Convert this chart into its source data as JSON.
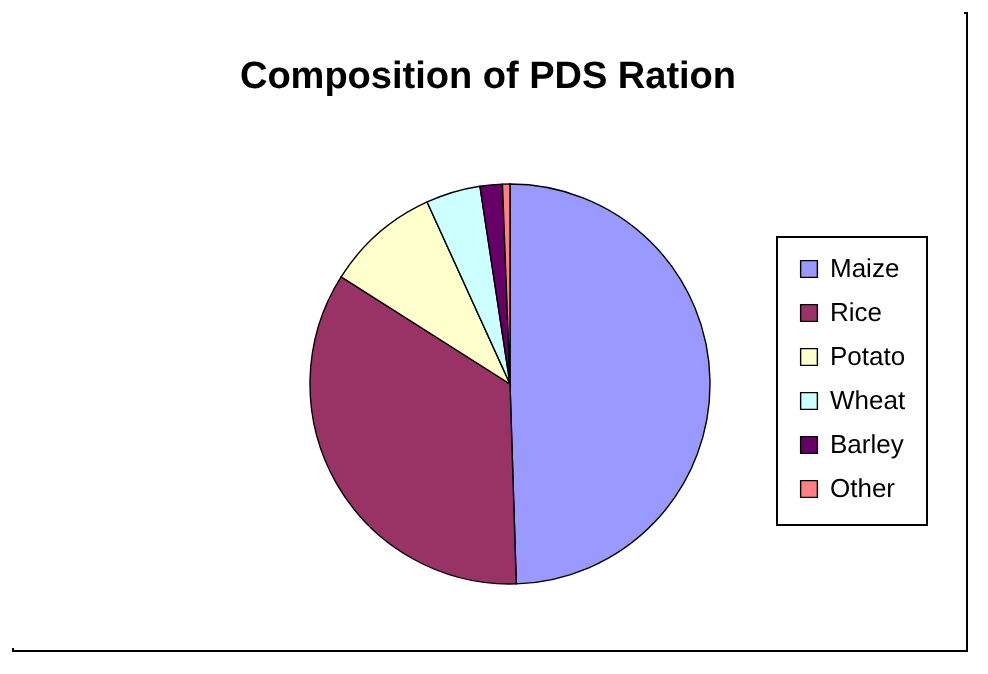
{
  "chart_data": {
    "type": "pie",
    "title": "Composition of PDS Ration",
    "categories": [
      "Maize",
      "Rice",
      "Potato",
      "Wheat",
      "Barley",
      "Other"
    ],
    "values": [
      49.5,
      34.5,
      9.2,
      4.4,
      1.8,
      0.6
    ],
    "colors": [
      "#9999ff",
      "#993366",
      "#ffffcc",
      "#ccffff",
      "#660066",
      "#ff8080"
    ],
    "legend": "right"
  }
}
